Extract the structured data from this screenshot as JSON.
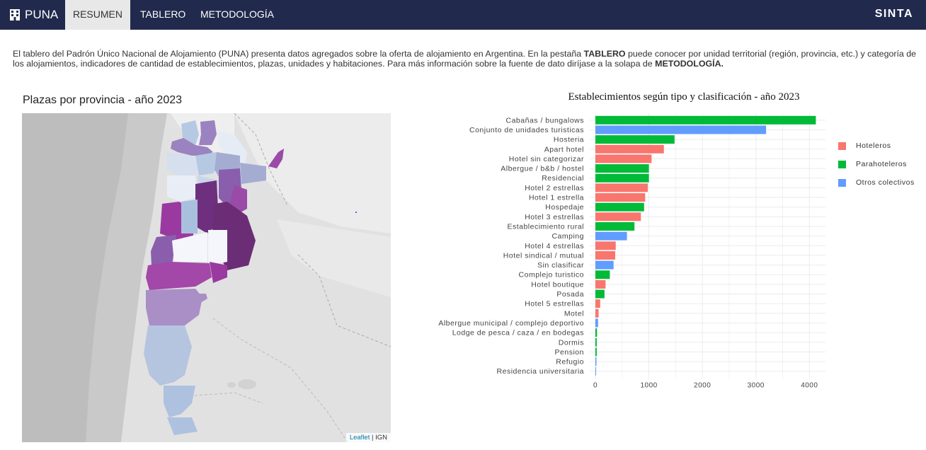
{
  "navbar": {
    "brand": "PUNA",
    "tabs": [
      {
        "label": "RESUMEN"
      },
      {
        "label": "TABLERO"
      },
      {
        "label": "METODOLOGÍA"
      }
    ],
    "right_brand": "SINTA",
    "background": "#212a4d",
    "active_tab_bg": "#e8e8e8"
  },
  "intro": {
    "part1": "El tablero del Padrón Único Nacional de Alojamiento (PUNA) presenta datos agregados sobre la oferta de alojamiento en Argentina. En la pestaña ",
    "bold1": "TABLERO",
    "part2": " puede conocer por unidad territorial (región, provincia, etc.) y categoría de los alojamientos, indicadores de cantidad de establecimientos, plazas, unidades y habitaciones. Para más información sobre la fuente de dato diríjase a la solapa de ",
    "bold2": "METODOLOGÍA."
  },
  "map": {
    "title": "Plazas por provincia - año 2023",
    "attribution_link": "Leaflet",
    "attribution_sep": " | ",
    "attribution_source": "IGN"
  },
  "chart_data": {
    "type": "bar",
    "orientation": "horizontal",
    "title": "Establecimientos según tipo y clasificación - año 2023",
    "xlim": [
      0,
      4300
    ],
    "x_ticks": [
      0,
      1000,
      2000,
      3000,
      4000
    ],
    "grid": true,
    "legend_position": "right",
    "legend": [
      {
        "label": "Hoteleros",
        "color": "#f8766d"
      },
      {
        "label": "Parahoteleros",
        "color": "#00ba38"
      },
      {
        "label": "Otros colectivos",
        "color": "#619cff"
      }
    ],
    "bars": [
      {
        "category": "Cabañas / bungalows",
        "value": 4120,
        "group": 1
      },
      {
        "category": "Conjunto de unidades turisticas",
        "value": 3190,
        "group": 2
      },
      {
        "category": "Hosteria",
        "value": 1480,
        "group": 1
      },
      {
        "category": "Apart hotel",
        "value": 1280,
        "group": 0
      },
      {
        "category": "Hotel sin categorizar",
        "value": 1050,
        "group": 0
      },
      {
        "category": "Albergue / b&b / hostel",
        "value": 1000,
        "group": 1
      },
      {
        "category": "Residencial",
        "value": 1000,
        "group": 1
      },
      {
        "category": "Hotel 2 estrellas",
        "value": 980,
        "group": 0
      },
      {
        "category": "Hotel 1 estrella",
        "value": 930,
        "group": 0
      },
      {
        "category": "Hospedaje",
        "value": 910,
        "group": 1
      },
      {
        "category": "Hotel 3 estrellas",
        "value": 850,
        "group": 0
      },
      {
        "category": "Establecimiento rural",
        "value": 730,
        "group": 1
      },
      {
        "category": "Camping",
        "value": 590,
        "group": 2
      },
      {
        "category": "Hotel 4 estrellas",
        "value": 380,
        "group": 0
      },
      {
        "category": "Hotel sindical / mutual",
        "value": 370,
        "group": 0
      },
      {
        "category": "Sin clasificar",
        "value": 340,
        "group": 2
      },
      {
        "category": "Complejo turistico",
        "value": 270,
        "group": 1
      },
      {
        "category": "Hotel boutique",
        "value": 190,
        "group": 0
      },
      {
        "category": "Posada",
        "value": 170,
        "group": 1
      },
      {
        "category": "Hotel 5 estrellas",
        "value": 90,
        "group": 0
      },
      {
        "category": "Motel",
        "value": 60,
        "group": 0
      },
      {
        "category": "Albergue municipal / complejo deportivo",
        "value": 50,
        "group": 2
      },
      {
        "category": "Lodge de pesca / caza / en bodegas",
        "value": 30,
        "group": 1
      },
      {
        "category": "Dormis",
        "value": 25,
        "group": 1
      },
      {
        "category": "Pension",
        "value": 25,
        "group": 1
      },
      {
        "category": "Refugio",
        "value": 20,
        "group": 2
      },
      {
        "category": "Residencia universitaria",
        "value": 10,
        "group": 2
      }
    ]
  }
}
